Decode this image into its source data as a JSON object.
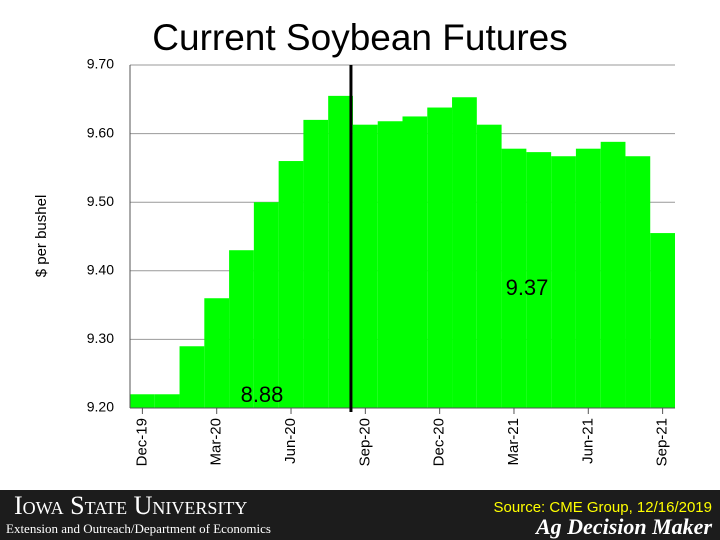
{
  "chart_data": {
    "type": "bar",
    "title": "Current Soybean Futures",
    "y_label": "$ per bushel",
    "categories": [
      "Dec-19",
      null,
      null,
      "Mar-20",
      null,
      null,
      "Jun-20",
      null,
      null,
      "Sep-20",
      null,
      null,
      "Dec-20",
      null,
      null,
      "Mar-21",
      null,
      null,
      "Jun-21",
      null,
      null,
      "Sep-21"
    ],
    "values": [
      9.22,
      9.22,
      9.29,
      9.36,
      9.43,
      9.5,
      9.56,
      9.62,
      9.655,
      9.613,
      9.618,
      9.625,
      9.638,
      9.653,
      9.613,
      9.578,
      9.573,
      9.567,
      9.578,
      9.588,
      9.567,
      9.455
    ],
    "color": "#00ff00",
    "ylim": [
      9.2,
      9.7
    ],
    "yticks": [
      {
        "value": 9.2,
        "label": "9.20"
      },
      {
        "value": 9.3,
        "label": "9.30"
      },
      {
        "value": 9.4,
        "label": "9.40"
      },
      {
        "value": 9.5,
        "label": "9.50"
      },
      {
        "value": 9.6,
        "label": "9.60"
      },
      {
        "value": 9.7,
        "label": "9.70"
      }
    ],
    "grid": true,
    "annotations": [
      "9.37",
      "8.88"
    ]
  },
  "footer": {
    "university": "Iowa State University",
    "department": "Extension and Outreach/Department of Economics",
    "source": "Source: CME Group, 12/16/2019",
    "brand": "Ag Decision Maker"
  }
}
